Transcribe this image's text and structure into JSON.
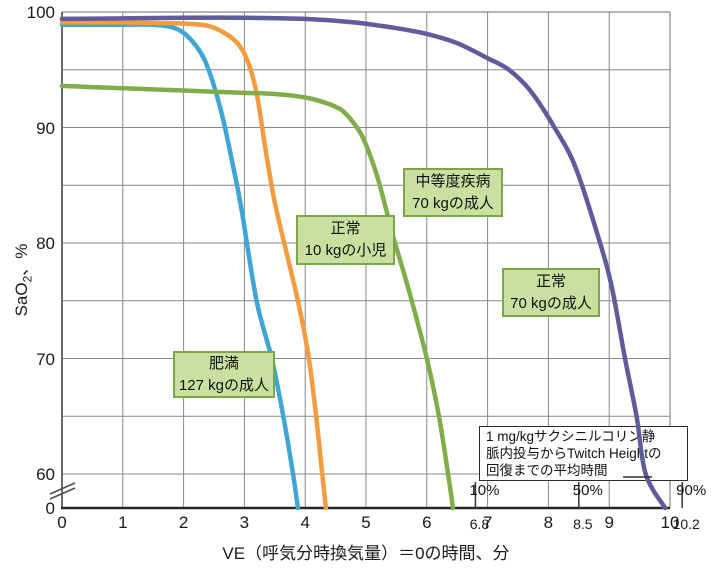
{
  "chart_data": {
    "type": "line",
    "title": "",
    "xlabel": "VE（呼気分時換気量）＝0の時間、分",
    "ylabel": "SaO2、%",
    "xlim": [
      0,
      10
    ],
    "grid": true,
    "y_axis_break_between": [
      60,
      0
    ],
    "y_axis": {
      "title_main": "SaO",
      "title_sub": "2",
      "title_rest": "、%",
      "ticks": [
        {
          "label": "100",
          "s": 100
        },
        {
          "label": "90",
          "s": 90
        },
        {
          "label": "80",
          "s": 80
        },
        {
          "label": "70",
          "s": 70
        },
        {
          "label": "60",
          "s": 60
        },
        {
          "label": "0",
          "s": 0
        }
      ],
      "gridline_values": [
        100,
        95,
        90,
        85,
        80,
        75,
        70,
        65,
        60
      ]
    },
    "x_axis": {
      "title": "VE（呼気分時換気量）＝0の時間、分",
      "ticks": [
        {
          "label": "0",
          "v": 0
        },
        {
          "label": "1",
          "v": 1
        },
        {
          "label": "2",
          "v": 2
        },
        {
          "label": "3",
          "v": 3
        },
        {
          "label": "4",
          "v": 4
        },
        {
          "label": "5",
          "v": 5
        },
        {
          "label": "6",
          "v": 6
        },
        {
          "label": "7",
          "v": 7
        },
        {
          "label": "8",
          "v": 8
        },
        {
          "label": "9",
          "v": 9
        },
        {
          "label": "10",
          "v": 10
        }
      ]
    },
    "series": [
      {
        "name": "肥満 127 kgの成人",
        "label_line1": "肥満",
        "label_line2": "127 kgの成人",
        "color": "#3fa5d6",
        "points": [
          [
            0,
            98.9
          ],
          [
            0.5,
            98.9
          ],
          [
            1,
            98.9
          ],
          [
            1.5,
            98.9
          ],
          [
            1.8,
            98.7
          ],
          [
            2.0,
            98.2
          ],
          [
            2.2,
            97.1
          ],
          [
            2.35,
            95.8
          ],
          [
            2.5,
            93.6
          ],
          [
            2.65,
            90.7
          ],
          [
            2.8,
            87.0
          ],
          [
            2.95,
            83.0
          ],
          [
            3.2,
            75.0
          ],
          [
            3.45,
            70.0
          ],
          [
            3.64,
            65.0
          ],
          [
            3.8,
            60.0
          ],
          [
            3.88,
            0
          ]
        ]
      },
      {
        "name": "正常 10 kgの小児",
        "label_line1": "正常",
        "label_line2": "10 kgの小児",
        "color": "#f49b40",
        "points": [
          [
            0,
            99.1
          ],
          [
            0.5,
            99.1
          ],
          [
            1,
            99.1
          ],
          [
            1.5,
            99.05
          ],
          [
            2,
            99.0
          ],
          [
            2.4,
            98.8
          ],
          [
            2.7,
            98.1
          ],
          [
            2.9,
            97.2
          ],
          [
            3.05,
            95.8
          ],
          [
            3.2,
            93.0
          ],
          [
            3.35,
            88.0
          ],
          [
            3.5,
            83.5
          ],
          [
            3.7,
            79.0
          ],
          [
            3.9,
            74.5
          ],
          [
            4.06,
            70.0
          ],
          [
            4.18,
            65.0
          ],
          [
            4.28,
            60.0
          ],
          [
            4.34,
            0
          ]
        ]
      },
      {
        "name": "中等度疾病 70 kgの成人",
        "label_line1": "中等度疾病",
        "label_line2": "70 kgの成人",
        "color": "#7ead49",
        "points": [
          [
            0,
            93.6
          ],
          [
            0.5,
            93.5
          ],
          [
            1,
            93.4
          ],
          [
            1.5,
            93.3
          ],
          [
            2,
            93.2
          ],
          [
            2.5,
            93.1
          ],
          [
            3,
            93.0
          ],
          [
            3.5,
            92.9
          ],
          [
            4,
            92.6
          ],
          [
            4.3,
            92.2
          ],
          [
            4.6,
            91.5
          ],
          [
            4.85,
            90.0
          ],
          [
            5.0,
            88.5
          ],
          [
            5.2,
            85.5
          ],
          [
            5.45,
            80.5
          ],
          [
            5.7,
            76.0
          ],
          [
            6.0,
            70.0
          ],
          [
            6.2,
            65.0
          ],
          [
            6.35,
            60.0
          ],
          [
            6.43,
            0
          ]
        ]
      },
      {
        "name": "正常 70 kgの成人",
        "label_line1": "正常",
        "label_line2": "70 kgの成人",
        "color": "#5f5b9d",
        "points": [
          [
            0,
            99.4
          ],
          [
            1,
            99.45
          ],
          [
            2,
            99.5
          ],
          [
            3,
            99.5
          ],
          [
            4,
            99.4
          ],
          [
            4.8,
            99.1
          ],
          [
            5.5,
            98.6
          ],
          [
            6,
            98.1
          ],
          [
            6.5,
            97.3
          ],
          [
            7,
            96.0
          ],
          [
            7.35,
            95.0
          ],
          [
            7.7,
            93.2
          ],
          [
            8.1,
            90.0
          ],
          [
            8.45,
            86.5
          ],
          [
            8.85,
            80.0
          ],
          [
            9.05,
            76.0
          ],
          [
            9.26,
            70.0
          ],
          [
            9.45,
            65.0
          ],
          [
            9.6,
            60.0
          ],
          [
            9.92,
            0
          ]
        ]
      }
    ],
    "annotation": {
      "lines": [
        "1 mg/kgサクシニルコリン静",
        "脈内投与からTwitch Heightの",
        "回復までの平均時間"
      ],
      "markers": [
        {
          "percent": "10%",
          "time": "6.8",
          "v": 6.8
        },
        {
          "percent": "50%",
          "time": "8.5",
          "v": 8.5
        },
        {
          "percent": "90%",
          "time": "10.2",
          "v": 10.2
        }
      ]
    },
    "colors": {
      "grid": "#878787",
      "axis_left": "#595959",
      "axis_bottom": "#262626",
      "label_box_fill": "#c9e0a0",
      "label_box_border": "#7ba546",
      "note_box_border": "#2b2b2b"
    }
  }
}
